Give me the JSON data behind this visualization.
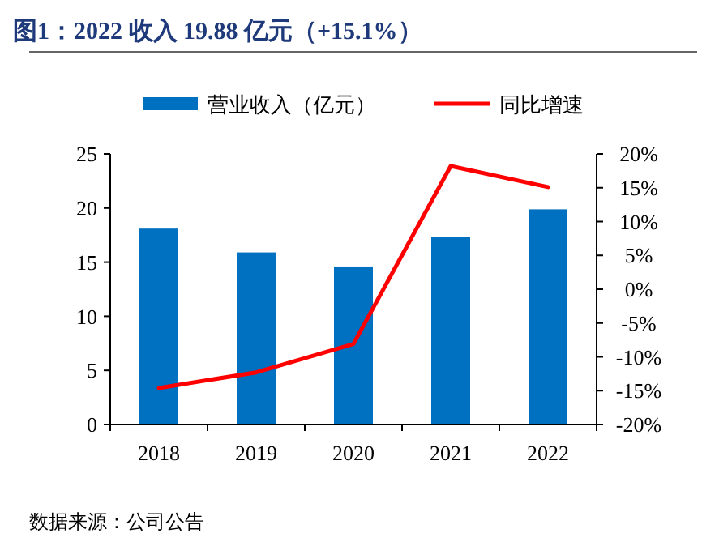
{
  "chart_data": {
    "type": "bar",
    "title": "图1：2022 收入 19.88 亿元（+15.1%）",
    "categories": [
      "2018",
      "2019",
      "2020",
      "2021",
      "2022"
    ],
    "series": [
      {
        "name": "营业收入（亿元）",
        "color": "#0070c0",
        "values": [
          18.1,
          15.9,
          14.6,
          17.3,
          19.88
        ]
      },
      {
        "name": "同比增速",
        "type": "line",
        "axis": "y2",
        "color": "#ff0000",
        "values": [
          -14.6,
          -12.3,
          -8.1,
          18.2,
          15.1
        ]
      }
    ],
    "ylim": [
      0,
      25
    ],
    "yticks": [
      0,
      5,
      10,
      15,
      20,
      25
    ],
    "y2lim": [
      -20,
      20
    ],
    "y2ticks": [
      {
        "value": -20,
        "label": "-20%"
      },
      {
        "value": -15,
        "label": "-15%"
      },
      {
        "value": -10,
        "label": "-10%"
      },
      {
        "value": -5,
        "label": "-5%"
      },
      {
        "value": 0,
        "label": "0%"
      },
      {
        "value": 5,
        "label": "5%"
      },
      {
        "value": 10,
        "label": "10%"
      },
      {
        "value": 15,
        "label": "15%"
      },
      {
        "value": 20,
        "label": "20%"
      }
    ],
    "legend": "top",
    "grid": false,
    "annotations": [
      "数据来源：公司公告"
    ]
  }
}
